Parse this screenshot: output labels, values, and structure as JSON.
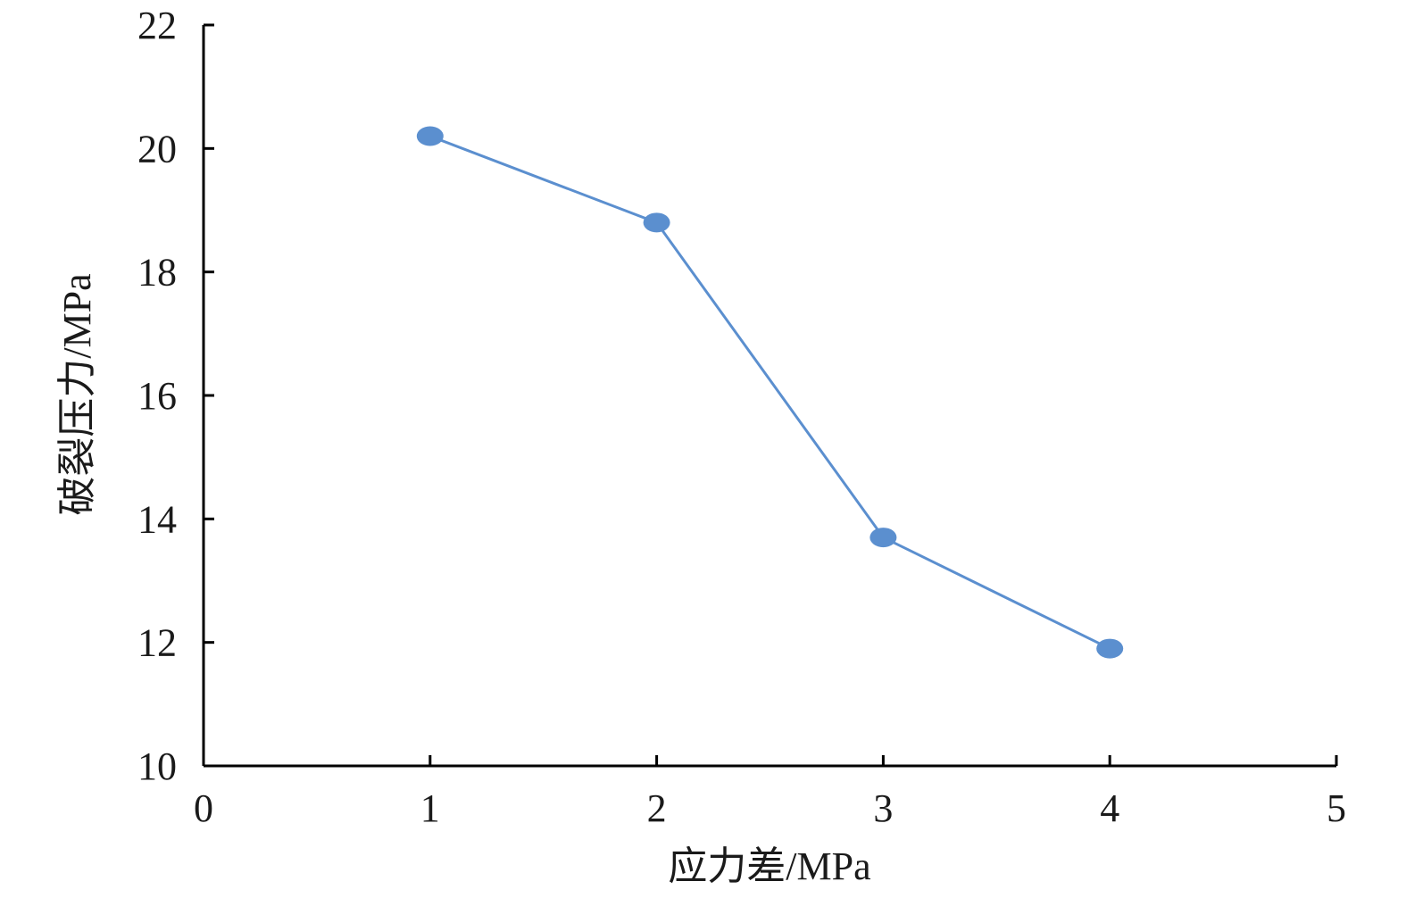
{
  "chart_data": {
    "type": "line",
    "title": "",
    "xlabel": "应力差/MPa",
    "ylabel": "破裂压力/MPa",
    "xlim": [
      0,
      5
    ],
    "ylim": [
      10,
      22
    ],
    "xticks": [
      0,
      1,
      2,
      3,
      4,
      5
    ],
    "yticks": [
      10,
      12,
      14,
      16,
      18,
      20,
      22
    ],
    "grid": false,
    "legend": "none",
    "series": [
      {
        "x": [
          1,
          2,
          3,
          4
        ],
        "y": [
          20.2,
          18.8,
          13.7,
          11.9
        ],
        "color": "#5b8fcf"
      }
    ],
    "axis_color": "#000000"
  }
}
